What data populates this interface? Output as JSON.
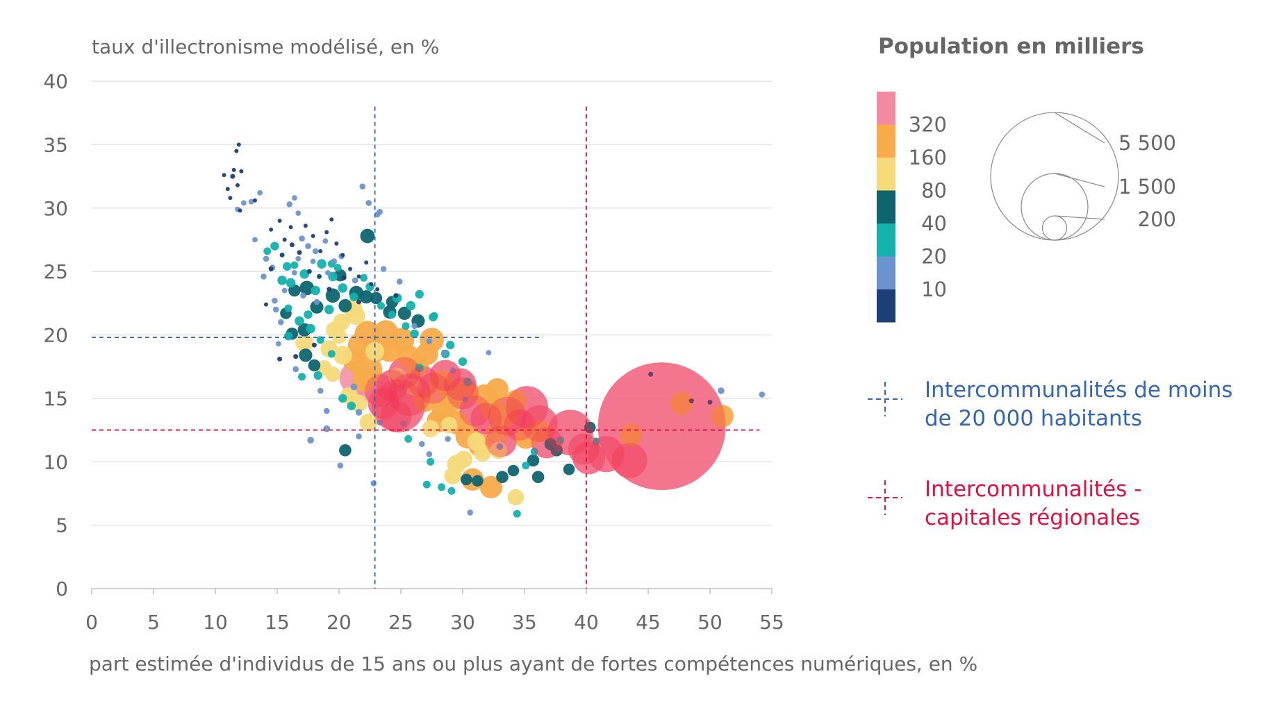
{
  "chart_data": {
    "type": "scatter",
    "ylabel": "taux d'illectronisme modélisé, en %",
    "xlabel": "part estimée d'individus de 15 ans ou plus ayant de fortes compétences numériques, en %",
    "xlim": [
      0,
      55
    ],
    "ylim": [
      0,
      40
    ],
    "x_ticks": [
      0,
      5,
      10,
      15,
      20,
      25,
      30,
      35,
      40,
      45,
      50,
      55
    ],
    "y_ticks": [
      0,
      5,
      10,
      15,
      20,
      25,
      30,
      35,
      40
    ],
    "grid": "horizontal",
    "color_legend": {
      "title": "Population en milliers",
      "thresholds": [
        "320",
        "160",
        "80",
        "40",
        "20",
        "10"
      ],
      "colors": [
        "#f48aa2",
        "#f8ab4a",
        "#f6da7a",
        "#0e6570",
        "#13b2ad",
        "#6b93cf",
        "#1a4077"
      ]
    },
    "size_legend": {
      "labels": [
        "5 500",
        "1 500",
        "200"
      ],
      "values": [
        5500,
        1500,
        200
      ]
    },
    "reference_lines": [
      {
        "label": "Intercommunalités de moins de 20 000 habitants",
        "x": 22.9,
        "y": 19.8,
        "color": "#3566b0"
      },
      {
        "label": "Intercommunalités - capitales régionales",
        "x": 40.0,
        "y": 12.5,
        "color": "#e0103f"
      }
    ],
    "points": [
      [
        46.1,
        12.8,
        5500
      ],
      [
        38.7,
        12.3,
        700
      ],
      [
        35.2,
        14.3,
        600
      ],
      [
        33.6,
        13.6,
        500
      ],
      [
        24.8,
        14.4,
        950
      ],
      [
        25.7,
        15.3,
        600
      ],
      [
        36.2,
        13.0,
        450
      ],
      [
        43.5,
        10.1,
        420
      ],
      [
        41.6,
        10.6,
        440
      ],
      [
        40.2,
        10.3,
        360
      ],
      [
        29.8,
        16.1,
        350
      ],
      [
        30.0,
        15.4,
        340
      ],
      [
        31.9,
        13.4,
        330
      ],
      [
        47.7,
        14.6,
        180
      ],
      [
        51.0,
        13.6,
        170
      ],
      [
        43.6,
        12.1,
        170
      ],
      [
        22.0,
        16.4,
        180
      ],
      [
        22.3,
        17.2,
        300
      ],
      [
        21.4,
        16.6,
        380
      ],
      [
        22.8,
        15.9,
        360
      ],
      [
        23.4,
        15.6,
        360
      ],
      [
        24.3,
        16.0,
        340
      ],
      [
        25.3,
        17.0,
        340
      ],
      [
        26.8,
        16.3,
        330
      ],
      [
        27.6,
        15.8,
        330
      ],
      [
        28.6,
        16.8,
        330
      ],
      [
        31.0,
        14.0,
        330
      ],
      [
        32.5,
        12.6,
        320
      ],
      [
        33.1,
        11.6,
        330
      ],
      [
        34.6,
        12.9,
        330
      ],
      [
        36.8,
        11.5,
        330
      ],
      [
        39.8,
        11.0,
        330
      ],
      [
        23.6,
        14.6,
        330
      ],
      [
        24.6,
        13.6,
        330
      ],
      [
        21.2,
        18.0,
        170
      ],
      [
        21.7,
        19.2,
        200
      ],
      [
        22.3,
        20.1,
        220
      ],
      [
        23.1,
        19.0,
        250
      ],
      [
        23.8,
        20.2,
        200
      ],
      [
        24.1,
        18.8,
        190
      ],
      [
        25.1,
        19.6,
        200
      ],
      [
        25.6,
        18.3,
        180
      ],
      [
        26.3,
        17.6,
        190
      ],
      [
        27.1,
        18.5,
        170
      ],
      [
        27.5,
        19.6,
        200
      ],
      [
        28.3,
        16.2,
        220
      ],
      [
        29.1,
        14.9,
        200
      ],
      [
        29.5,
        13.1,
        190
      ],
      [
        30.4,
        12.0,
        200
      ],
      [
        31.4,
        11.3,
        180
      ],
      [
        32.4,
        14.2,
        200
      ],
      [
        33.6,
        13.6,
        180
      ],
      [
        34.3,
        14.8,
        160
      ],
      [
        32.9,
        12.4,
        170
      ],
      [
        30.8,
        8.6,
        170
      ],
      [
        32.3,
        8.0,
        170
      ],
      [
        28.4,
        14.0,
        170
      ],
      [
        26.9,
        14.8,
        170
      ],
      [
        28.0,
        13.2,
        170
      ],
      [
        35.1,
        11.9,
        170
      ],
      [
        36.2,
        12.4,
        170
      ],
      [
        30.2,
        15.6,
        180
      ],
      [
        31.8,
        15.2,
        180
      ],
      [
        32.8,
        15.7,
        170
      ],
      [
        22.9,
        18.7,
        120
      ],
      [
        21.4,
        21.5,
        110
      ],
      [
        21.1,
        22.1,
        120
      ],
      [
        20.2,
        21.0,
        100
      ],
      [
        19.6,
        20.4,
        90
      ],
      [
        20.3,
        18.4,
        120
      ],
      [
        17.2,
        19.4,
        110
      ],
      [
        19.2,
        18.9,
        100
      ],
      [
        20.8,
        15.2,
        100
      ],
      [
        21.6,
        14.6,
        100
      ],
      [
        22.4,
        13.1,
        110
      ],
      [
        27.4,
        12.6,
        100
      ],
      [
        28.9,
        12.9,
        90
      ],
      [
        29.5,
        9.8,
        120
      ],
      [
        29.2,
        8.9,
        100
      ],
      [
        31.1,
        11.6,
        110
      ],
      [
        32.9,
        10.9,
        100
      ],
      [
        34.3,
        7.2,
        90
      ],
      [
        30.1,
        10.2,
        100
      ],
      [
        31.6,
        10.7,
        100
      ],
      [
        24.7,
        16.7,
        110
      ],
      [
        26.0,
        15.9,
        100
      ],
      [
        19.5,
        16.9,
        80
      ],
      [
        18.8,
        17.4,
        80
      ],
      [
        20.0,
        19.9,
        80
      ],
      [
        22.3,
        27.8,
        70
      ],
      [
        16.4,
        23.5,
        50
      ],
      [
        17.4,
        23.7,
        70
      ],
      [
        18.2,
        22.2,
        60
      ],
      [
        19.5,
        23.1,
        70
      ],
      [
        20.5,
        22.3,
        60
      ],
      [
        20.1,
        24.7,
        50
      ],
      [
        21.4,
        23.3,
        70
      ],
      [
        22.2,
        23.0,
        60
      ],
      [
        23.0,
        22.9,
        50
      ],
      [
        24.1,
        21.8,
        60
      ],
      [
        24.3,
        22.6,
        50
      ],
      [
        25.3,
        21.7,
        60
      ],
      [
        26.4,
        21.1,
        60
      ],
      [
        17.2,
        20.4,
        60
      ],
      [
        16.2,
        20.1,
        50
      ],
      [
        17.3,
        18.4,
        60
      ],
      [
        18.0,
        17.6,
        50
      ],
      [
        20.5,
        10.9,
        50
      ],
      [
        36.1,
        8.8,
        50
      ],
      [
        38.6,
        9.4,
        45
      ],
      [
        37.6,
        10.9,
        50
      ],
      [
        35.7,
        10.1,
        50
      ],
      [
        37.1,
        11.4,
        50
      ],
      [
        33.2,
        8.8,
        50
      ],
      [
        34.1,
        9.3,
        45
      ],
      [
        40.3,
        12.7,
        45
      ],
      [
        30.3,
        8.6,
        45
      ],
      [
        31.2,
        8.5,
        45
      ],
      [
        15.7,
        21.7,
        45
      ],
      [
        14.8,
        27.0,
        25
      ],
      [
        15.8,
        25.4,
        25
      ],
      [
        16.1,
        24.1,
        30
      ],
      [
        15.4,
        24.3,
        30
      ],
      [
        17.2,
        24.8,
        30
      ],
      [
        18.6,
        25.6,
        30
      ],
      [
        19.5,
        24.6,
        30
      ],
      [
        18.1,
        23.5,
        30
      ],
      [
        17.5,
        21.6,
        25
      ],
      [
        16.8,
        21.1,
        30
      ],
      [
        15.9,
        19.9,
        25
      ],
      [
        17.7,
        20.5,
        30
      ],
      [
        19.2,
        22.0,
        30
      ],
      [
        20.3,
        23.7,
        30
      ],
      [
        21.2,
        23.0,
        25
      ],
      [
        22.5,
        23.8,
        25
      ],
      [
        24.7,
        22.9,
        30
      ],
      [
        25.8,
        22.3,
        30
      ],
      [
        26.5,
        23.2,
        25
      ],
      [
        27.6,
        21.4,
        25
      ],
      [
        29.0,
        19.2,
        25
      ],
      [
        30.0,
        17.9,
        25
      ],
      [
        30.4,
        16.3,
        25
      ],
      [
        26.5,
        17.4,
        25
      ],
      [
        28.6,
        18.5,
        25
      ],
      [
        26.1,
        20.1,
        25
      ],
      [
        18.3,
        16.8,
        25
      ],
      [
        17.0,
        16.7,
        20
      ],
      [
        20.3,
        15.0,
        25
      ],
      [
        21.0,
        14.4,
        25
      ],
      [
        25.6,
        11.8,
        20
      ],
      [
        27.4,
        10.0,
        20
      ],
      [
        28.3,
        8.0,
        20
      ],
      [
        29.1,
        7.7,
        20
      ],
      [
        34.4,
        5.9,
        20
      ],
      [
        35.1,
        9.7,
        20
      ],
      [
        35.8,
        10.8,
        20
      ],
      [
        37.9,
        11.7,
        20
      ],
      [
        40.8,
        11.6,
        20
      ],
      [
        27.1,
        8.2,
        20
      ],
      [
        17.7,
        11.7,
        15
      ],
      [
        19.0,
        12.6,
        15
      ],
      [
        21.6,
        13.9,
        15
      ],
      [
        21.2,
        15.9,
        15
      ],
      [
        50.9,
        15.6,
        15
      ],
      [
        33.0,
        11.2,
        15
      ],
      [
        16.4,
        25.5,
        20
      ],
      [
        19.9,
        25.3,
        20
      ],
      [
        19.4,
        25.6,
        20
      ],
      [
        14.2,
        26.6,
        20
      ],
      [
        15.9,
        22.1,
        20
      ],
      [
        22.0,
        24.5,
        20
      ],
      [
        23.4,
        22.3,
        20
      ],
      [
        24.3,
        21.6,
        20
      ],
      [
        25.4,
        20.7,
        20
      ],
      [
        27.7,
        21.5,
        20
      ],
      [
        18.5,
        19.6,
        20
      ],
      [
        19.4,
        18.5,
        20
      ],
      [
        21.9,
        31.7,
        12
      ],
      [
        22.4,
        30.4,
        12
      ],
      [
        23.1,
        29.5,
        12
      ],
      [
        23.3,
        29.7,
        12
      ],
      [
        16.0,
        30.3,
        12
      ],
      [
        16.4,
        30.8,
        10
      ],
      [
        14.1,
        26.0,
        12
      ],
      [
        14.6,
        25.3,
        12
      ],
      [
        13.9,
        24.6,
        12
      ],
      [
        14.8,
        22.7,
        12
      ],
      [
        14.9,
        22.0,
        12
      ],
      [
        15.3,
        21.0,
        12
      ],
      [
        16.7,
        29.6,
        10
      ],
      [
        17.0,
        27.6,
        12
      ],
      [
        17.5,
        27.0,
        12
      ],
      [
        18.1,
        26.6,
        12
      ],
      [
        17.1,
        23.1,
        12
      ],
      [
        18.2,
        22.6,
        12
      ],
      [
        19.6,
        25.8,
        12
      ],
      [
        20.2,
        26.2,
        12
      ],
      [
        21.3,
        24.3,
        12
      ],
      [
        23.6,
        25.2,
        12
      ],
      [
        24.9,
        24.2,
        12
      ],
      [
        26.1,
        20.7,
        12
      ],
      [
        27.3,
        19.5,
        12
      ],
      [
        28.5,
        18.6,
        12
      ],
      [
        29.2,
        17.2,
        12
      ],
      [
        30.2,
        14.9,
        12
      ],
      [
        30.6,
        6.0,
        12
      ],
      [
        32.1,
        18.6,
        10
      ],
      [
        20.1,
        9.7,
        12
      ],
      [
        22.8,
        8.3,
        12
      ],
      [
        21.6,
        12.0,
        12
      ],
      [
        23.3,
        13.1,
        12
      ],
      [
        25.2,
        13.0,
        12
      ],
      [
        26.7,
        11.4,
        12
      ],
      [
        28.8,
        11.8,
        12
      ],
      [
        27.3,
        10.6,
        12
      ],
      [
        19.0,
        14.0,
        12
      ],
      [
        54.2,
        15.3,
        12
      ],
      [
        18.5,
        15.6,
        12
      ],
      [
        16.5,
        17.3,
        12
      ],
      [
        15.1,
        19.3,
        10
      ],
      [
        13.2,
        27.5,
        10
      ],
      [
        13.6,
        31.2,
        10
      ],
      [
        12.9,
        30.5,
        10
      ],
      [
        11.8,
        29.9,
        10
      ],
      [
        12.3,
        30.4,
        10
      ],
      [
        11.4,
        32.5,
        8
      ],
      [
        11.9,
        35.0,
        6
      ],
      [
        11.5,
        33.0,
        6
      ],
      [
        11.0,
        31.5,
        6
      ],
      [
        11.8,
        31.8,
        6
      ],
      [
        12.1,
        32.9,
        6
      ],
      [
        11.7,
        34.5,
        6
      ],
      [
        10.7,
        32.6,
        6
      ],
      [
        11.2,
        30.8,
        6
      ],
      [
        12.0,
        29.8,
        6
      ],
      [
        13.2,
        30.6,
        6
      ],
      [
        14.5,
        28.3,
        6
      ],
      [
        15.2,
        29.0,
        6
      ],
      [
        15.6,
        27.5,
        6
      ],
      [
        16.1,
        28.5,
        6
      ],
      [
        16.8,
        26.5,
        8
      ],
      [
        17.3,
        28.6,
        6
      ],
      [
        17.9,
        27.8,
        6
      ],
      [
        18.5,
        26.6,
        6
      ],
      [
        19.0,
        28.1,
        6
      ],
      [
        19.4,
        29.1,
        6
      ],
      [
        19.8,
        27.2,
        6
      ],
      [
        20.3,
        26.3,
        6
      ],
      [
        20.9,
        25.2,
        6
      ],
      [
        21.6,
        24.6,
        6
      ],
      [
        22.2,
        25.7,
        6
      ],
      [
        23.1,
        23.6,
        6
      ],
      [
        22.6,
        24.0,
        6
      ],
      [
        14.1,
        22.4,
        6
      ],
      [
        14.5,
        25.2,
        8
      ],
      [
        15.4,
        26.3,
        8
      ],
      [
        16.2,
        27.1,
        8
      ],
      [
        17.6,
        25.0,
        8
      ],
      [
        18.4,
        24.6,
        8
      ],
      [
        19.2,
        23.6,
        8
      ],
      [
        20.4,
        24.5,
        8
      ],
      [
        21.6,
        22.6,
        8
      ],
      [
        15.2,
        18.1,
        8
      ],
      [
        16.5,
        18.3,
        8
      ],
      [
        18.0,
        19.2,
        8
      ],
      [
        45.2,
        16.9,
        8
      ],
      [
        48.5,
        14.8,
        8
      ],
      [
        50.0,
        14.7,
        8
      ],
      [
        24.6,
        23.1,
        8
      ],
      [
        16.7,
        26.0,
        10
      ],
      [
        17.9,
        25.8,
        10
      ],
      [
        19.1,
        24.9,
        10
      ],
      [
        15.6,
        23.5,
        10
      ],
      [
        16.4,
        24.9,
        10
      ],
      [
        18.9,
        27.4,
        10
      ]
    ]
  }
}
